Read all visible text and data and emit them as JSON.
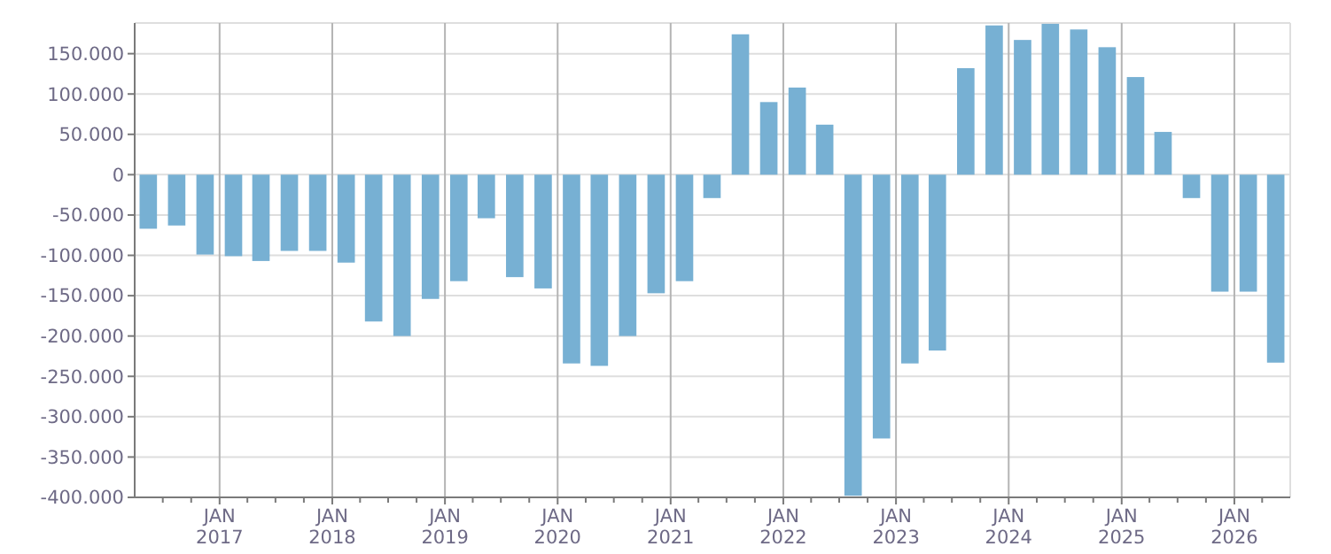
{
  "chart_data": {
    "type": "bar",
    "color": "#77b0d3",
    "x": [
      "2016-05-15",
      "2016-08-15",
      "2016-11-15",
      "2017-02-15",
      "2017-05-15",
      "2017-08-15",
      "2017-11-15",
      "2018-02-15",
      "2018-05-15",
      "2018-08-15",
      "2018-11-15",
      "2019-02-15",
      "2019-05-15",
      "2019-08-15",
      "2019-11-15",
      "2020-02-15",
      "2020-05-15",
      "2020-08-15",
      "2020-11-15",
      "2021-02-15",
      "2021-05-15",
      "2021-08-15",
      "2021-11-15",
      "2022-02-15",
      "2022-05-15",
      "2022-08-15",
      "2022-11-15",
      "2023-02-15",
      "2023-05-15",
      "2023-08-15",
      "2023-11-15",
      "2024-02-15",
      "2024-05-15",
      "2024-08-15",
      "2024-11-15",
      "2025-02-15",
      "2025-05-15",
      "2025-08-15",
      "2025-11-15",
      "2026-02-15",
      "2026-05-15"
    ],
    "values": [
      -67000,
      -63000,
      -99000,
      -101000,
      -107000,
      -94500,
      -94500,
      -109000,
      -182000,
      -200000,
      -154000,
      -132000,
      -54000,
      -127000,
      -141000,
      -234000,
      -237000,
      -200000,
      -147000,
      -132000,
      -29000,
      174000,
      90000,
      108000,
      62000,
      -398000,
      -327000,
      -234000,
      -218000,
      132000,
      185000,
      167000,
      187000,
      180000,
      158000,
      121000,
      53000,
      -29000,
      -145000,
      -145000,
      -233000
    ],
    "xlim": [
      "2016-04",
      "2026-07"
    ],
    "xticks": [
      {
        "value": "2016-07",
        "label": null
      },
      {
        "value": "2016-10",
        "label": null
      },
      {
        "value": "2017-01",
        "label": "JAN\n2017"
      },
      {
        "value": "2017-04",
        "label": null
      },
      {
        "value": "2017-07",
        "label": null
      },
      {
        "value": "2017-10",
        "label": null
      },
      {
        "value": "2018-01",
        "label": "JAN\n2018"
      },
      {
        "value": "2018-04",
        "label": null
      },
      {
        "value": "2018-07",
        "label": null
      },
      {
        "value": "2018-10",
        "label": null
      },
      {
        "value": "2019-01",
        "label": "JAN\n2019"
      },
      {
        "value": "2019-04",
        "label": null
      },
      {
        "value": "2019-07",
        "label": null
      },
      {
        "value": "2019-10",
        "label": null
      },
      {
        "value": "2020-01",
        "label": "JAN\n2020"
      },
      {
        "value": "2020-04",
        "label": null
      },
      {
        "value": "2020-07",
        "label": null
      },
      {
        "value": "2020-10",
        "label": null
      },
      {
        "value": "2021-01",
        "label": "JAN\n2021"
      },
      {
        "value": "2021-04",
        "label": null
      },
      {
        "value": "2021-07",
        "label": null
      },
      {
        "value": "2021-10",
        "label": null
      },
      {
        "value": "2022-01",
        "label": "JAN\n2022"
      },
      {
        "value": "2022-04",
        "label": null
      },
      {
        "value": "2022-07",
        "label": null
      },
      {
        "value": "2022-10",
        "label": null
      },
      {
        "value": "2023-01",
        "label": "JAN\n2023"
      },
      {
        "value": "2023-04",
        "label": null
      },
      {
        "value": "2023-07",
        "label": null
      },
      {
        "value": "2023-10",
        "label": null
      },
      {
        "value": "2024-01",
        "label": "JAN\n2024"
      },
      {
        "value": "2024-04",
        "label": null
      },
      {
        "value": "2024-07",
        "label": null
      },
      {
        "value": "2024-10",
        "label": null
      },
      {
        "value": "2025-01",
        "label": "JAN\n2025"
      },
      {
        "value": "2025-04",
        "label": null
      },
      {
        "value": "2025-07",
        "label": null
      },
      {
        "value": "2025-10",
        "label": null
      },
      {
        "value": "2026-01",
        "label": "JAN\n2026"
      },
      {
        "value": "2026-04",
        "label": null
      }
    ],
    "ylim": [
      -400000,
      188000
    ],
    "yticks": [
      {
        "value": -400000,
        "label": "-400.000"
      },
      {
        "value": -350000,
        "label": "-350.000"
      },
      {
        "value": -300000,
        "label": "-300.000"
      },
      {
        "value": -250000,
        "label": "-250.000"
      },
      {
        "value": -200000,
        "label": "-200.000"
      },
      {
        "value": -150000,
        "label": "-150.000"
      },
      {
        "value": -100000,
        "label": "-100.000"
      },
      {
        "value": -50000,
        "label": "-50.000"
      },
      {
        "value": 0,
        "label": "0"
      },
      {
        "value": 50000,
        "label": "50.000"
      },
      {
        "value": 100000,
        "label": "100.000"
      },
      {
        "value": 150000,
        "label": "150.000"
      }
    ],
    "grid": true
  }
}
